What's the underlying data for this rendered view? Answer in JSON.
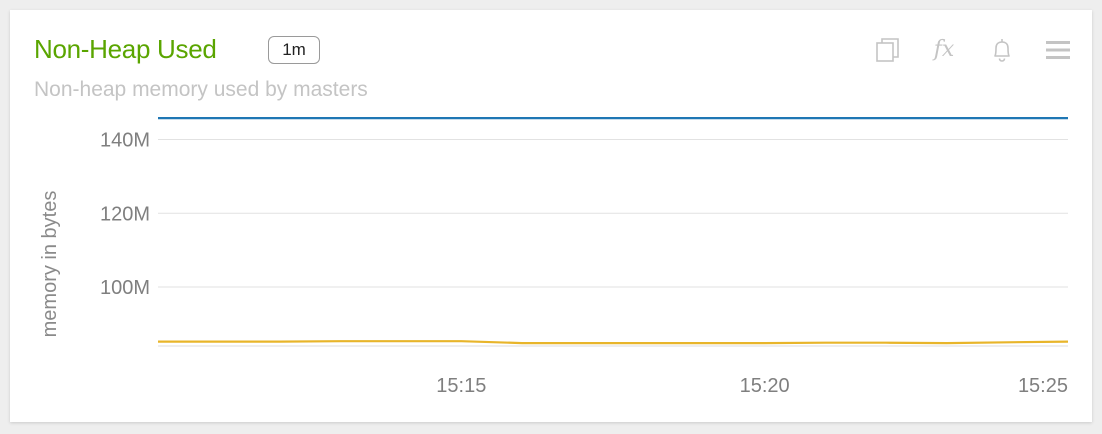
{
  "panel": {
    "title": "Non-Heap Used",
    "interval_badge": "1m",
    "subtitle": "Non-heap memory used by masters",
    "title_color": "#5aa500",
    "toolbar": {
      "icons": [
        "copy-icon",
        "fx-icon",
        "bell-icon",
        "menu-icon"
      ],
      "fx_label": "fx"
    }
  },
  "chart_data": {
    "type": "line",
    "title": "Non-Heap Used",
    "ylabel": "memory in bytes",
    "xlabel": "",
    "x_unit": "minute",
    "xlim": [
      "15:10",
      "15:25"
    ],
    "ylim": [
      84,
      148
    ],
    "y_unit": "M",
    "y_ticks": [
      100,
      120,
      140
    ],
    "y_tick_labels": [
      "100M",
      "120M",
      "140M"
    ],
    "x_ticks": [
      "15:15",
      "15:20",
      "15:25"
    ],
    "grid": true,
    "series": [
      {
        "color": "#1f77b4",
        "x": [
          "15:10",
          "15:11",
          "15:12",
          "15:13",
          "15:14",
          "15:15",
          "15:16",
          "15:17",
          "15:18",
          "15:19",
          "15:20",
          "15:21",
          "15:22",
          "15:23",
          "15:24",
          "15:25"
        ],
        "values": [
          145.8,
          145.8,
          145.8,
          145.8,
          145.8,
          145.8,
          145.8,
          145.8,
          145.8,
          145.8,
          145.8,
          145.8,
          145.8,
          145.8,
          145.8,
          145.8
        ]
      },
      {
        "color": "#e8b52a",
        "x": [
          "15:10",
          "15:11",
          "15:12",
          "15:13",
          "15:14",
          "15:15",
          "15:16",
          "15:17",
          "15:18",
          "15:19",
          "15:20",
          "15:21",
          "15:22",
          "15:23",
          "15:24",
          "15:25"
        ],
        "values": [
          85.2,
          85.2,
          85.2,
          85.3,
          85.3,
          85.3,
          84.8,
          84.8,
          84.8,
          84.8,
          84.8,
          84.9,
          84.9,
          84.8,
          85.0,
          85.2
        ]
      }
    ]
  }
}
